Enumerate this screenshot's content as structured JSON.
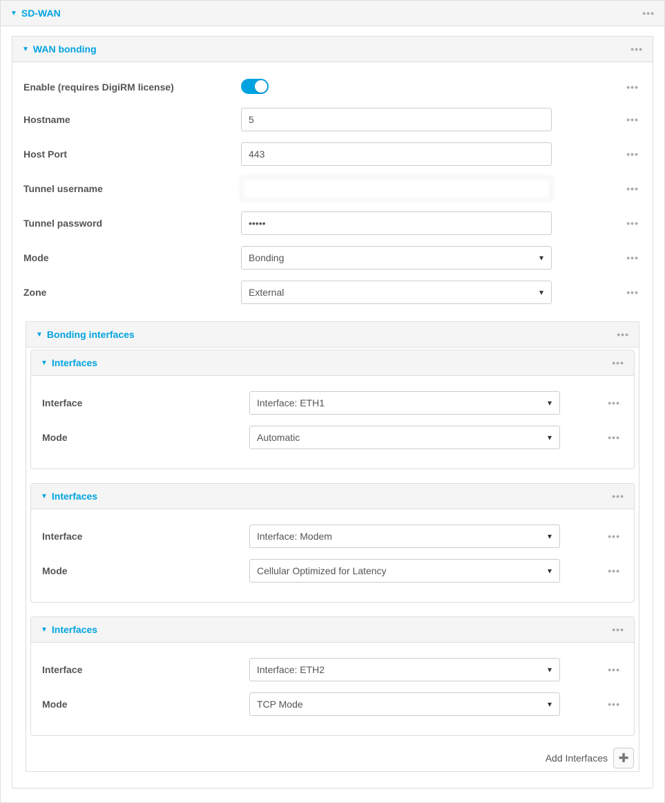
{
  "section": {
    "title": "SD-WAN"
  },
  "wan_bonding": {
    "title": "WAN bonding",
    "fields": {
      "enable_label": "Enable (requires DigiRM license)",
      "enable_value": true,
      "hostname_label": "Hostname",
      "hostname_value": "5",
      "hostport_label": "Host Port",
      "hostport_value": "443",
      "tunnel_user_label": "Tunnel username",
      "tunnel_user_value": "",
      "tunnel_pass_label": "Tunnel password",
      "tunnel_pass_value": "•••••",
      "mode_label": "Mode",
      "mode_value": "Bonding",
      "zone_label": "Zone",
      "zone_value": "External"
    },
    "bonding_interfaces": {
      "title": "Bonding interfaces",
      "groups": [
        {
          "title": "Interfaces",
          "interface_label": "Interface",
          "interface_value": "Interface: ETH1",
          "mode_label": "Mode",
          "mode_value": "Automatic"
        },
        {
          "title": "Interfaces",
          "interface_label": "Interface",
          "interface_value": "Interface: Modem",
          "mode_label": "Mode",
          "mode_value": "Cellular Optimized for Latency"
        },
        {
          "title": "Interfaces",
          "interface_label": "Interface",
          "interface_value": "Interface: ETH2",
          "mode_label": "Mode",
          "mode_value": "TCP Mode"
        }
      ],
      "add_label": "Add Interfaces"
    }
  },
  "colors": {
    "accent": "#00a3e0",
    "border": "#dddddd",
    "header_bg": "#f5f5f5",
    "text": "#555555"
  }
}
